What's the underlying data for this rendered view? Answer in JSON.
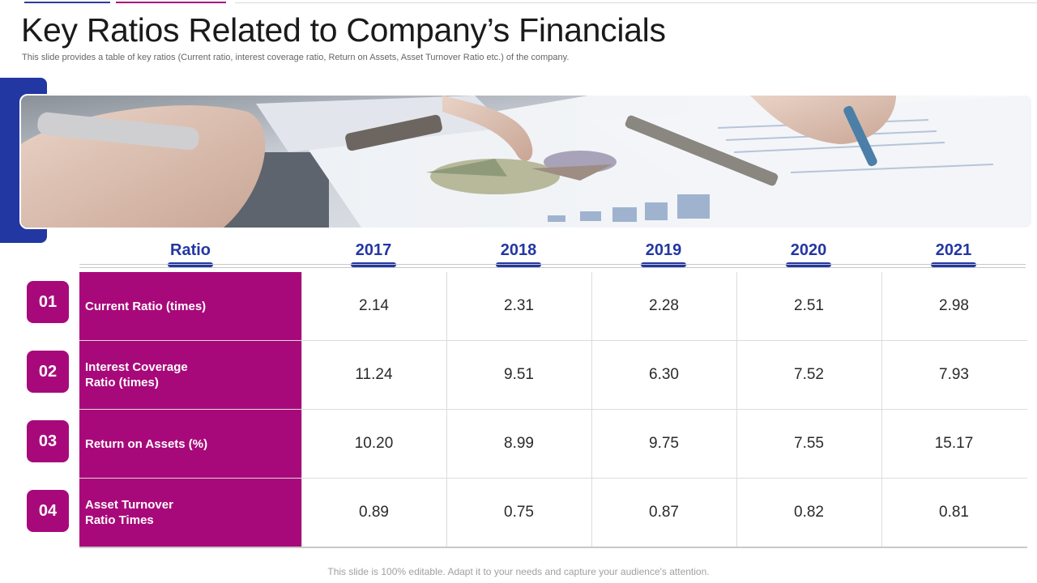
{
  "slide": {
    "title": "Key Ratios Related to Company’s Financials",
    "subtitle": "This slide provides a table of key ratios (Current ratio, interest coverage ratio, Return on Assets, Asset Turnover Ratio etc.) of the company.",
    "footer": "This slide is 100% editable. Adapt it to your needs and capture your audience's attention."
  },
  "table": {
    "headers": [
      "Ratio",
      "2017",
      "2018",
      "2019",
      "2020",
      "2021"
    ],
    "rows": [
      {
        "num": "01",
        "label": "Current Ratio (times)",
        "values": [
          "2.14",
          "2.31",
          "2.28",
          "2.51",
          "2.98"
        ]
      },
      {
        "num": "02",
        "label": "Interest Coverage Ratio (times)",
        "values": [
          "11.24",
          "9.51",
          "6.30",
          "7.52",
          "7.93"
        ]
      },
      {
        "num": "03",
        "label": "Return on Assets (%)",
        "values": [
          "10.20",
          "8.99",
          "9.75",
          "7.55",
          "15.17"
        ]
      },
      {
        "num": "04",
        "label": "Asset Turnover Ratio Times",
        "values": [
          "0.89",
          "0.75",
          "0.87",
          "0.82",
          "0.81"
        ]
      }
    ]
  },
  "colors": {
    "accent_blue": "#2337a3",
    "accent_magenta": "#a8097a"
  },
  "image": {
    "icon": "finance-documents-photo"
  }
}
